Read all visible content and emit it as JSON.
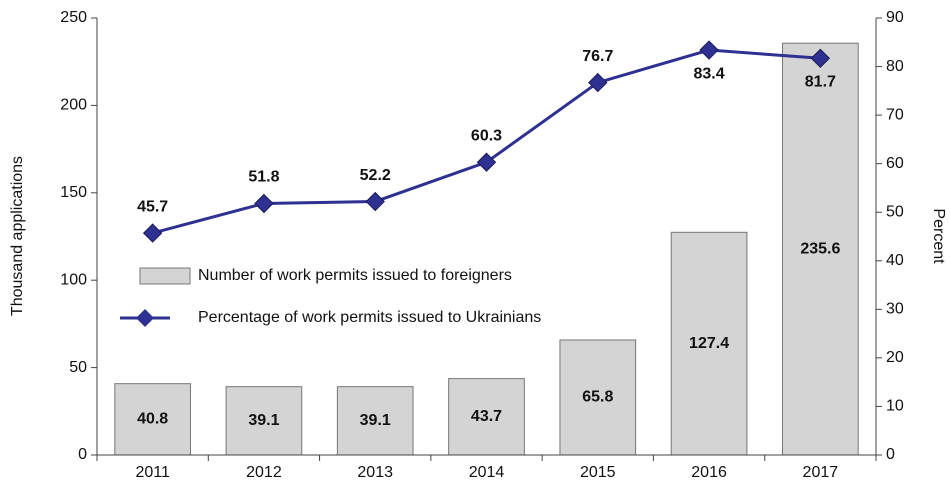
{
  "chart_data": {
    "type": "bar+line",
    "categories": [
      "2011",
      "2012",
      "2013",
      "2014",
      "2015",
      "2016",
      "2017"
    ],
    "series": [
      {
        "name": "Number of work permits issued to foreigners",
        "type": "bar",
        "color": "#d4d4d4",
        "values": [
          40.8,
          39.1,
          39.1,
          43.7,
          65.8,
          127.4,
          235.6
        ]
      },
      {
        "name": "Percentage of work permits issued to Ukrainians",
        "type": "line",
        "color": "#2e3192",
        "axis": "y2",
        "values": [
          45.7,
          51.8,
          52.2,
          60.3,
          76.7,
          83.4,
          81.7
        ]
      }
    ],
    "ylabel": "Thousand applications",
    "y2label": "Percent",
    "ylim": [
      0,
      250
    ],
    "yticks": [
      0,
      50,
      100,
      150,
      200,
      250
    ],
    "y2lim": [
      0,
      90
    ],
    "y2ticks": [
      0,
      10,
      20,
      30,
      40,
      50,
      60,
      70,
      80,
      90
    ],
    "legend": "center-left",
    "grid": false
  }
}
